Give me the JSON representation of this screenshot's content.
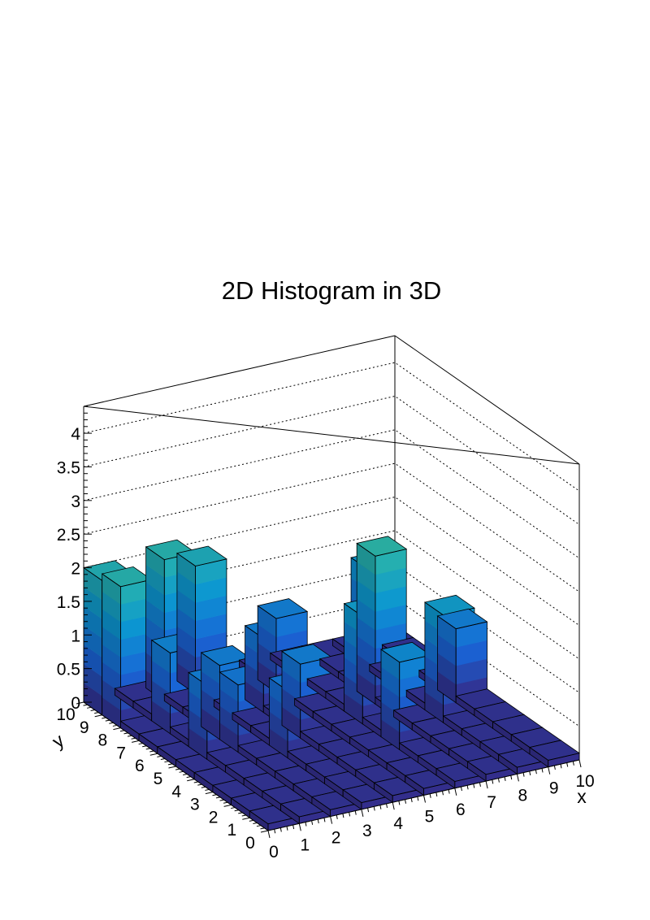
{
  "chart_data": {
    "type": "lego3d",
    "title": "2D Histogram in 3D",
    "xlabel": "x",
    "ylabel": "y",
    "zlabel": "",
    "xlim": [
      0,
      10
    ],
    "ylim": [
      0,
      10
    ],
    "zlim": [
      0,
      4.4
    ],
    "x_ticks": [
      "0",
      "1",
      "2",
      "3",
      "4",
      "5",
      "6",
      "7",
      "8",
      "9",
      "10"
    ],
    "y_ticks": [
      "0",
      "1",
      "2",
      "3",
      "4",
      "5",
      "6",
      "7",
      "8",
      "9",
      "10"
    ],
    "z_ticks": [
      {
        "value": 0,
        "label": "0"
      },
      {
        "value": 0.5,
        "label": "0.5"
      },
      {
        "value": 1,
        "label": "1"
      },
      {
        "value": 1.5,
        "label": "1.5"
      },
      {
        "value": 2,
        "label": "2"
      },
      {
        "value": 2.5,
        "label": "2.5"
      },
      {
        "value": 3,
        "label": "3"
      },
      {
        "value": 3.5,
        "label": "3.5"
      },
      {
        "value": 4,
        "label": "4"
      }
    ],
    "grid": true,
    "palette": [
      "#352a87",
      "#1964d6",
      "#0c97d1",
      "#2bb5a8",
      "#8dbe6b",
      "#e3b94c",
      "#f9fb0e"
    ],
    "values": [
      [
        0.1,
        0.1,
        0.1,
        0.1,
        0.1,
        0.1,
        0.1,
        0.1,
        0.1,
        0.1
      ],
      [
        0.1,
        0.1,
        0.1,
        0.1,
        0.1,
        0.1,
        0.1,
        0.1,
        0.1,
        0.1
      ],
      [
        0.1,
        0.1,
        0.1,
        0.1,
        0.1,
        0.1,
        0.1,
        0.1,
        0.1,
        0.1
      ],
      [
        0.1,
        0.1,
        0.1,
        0.1,
        0.1,
        0.1,
        1.3,
        0.1,
        0.1,
        0.1
      ],
      [
        0.1,
        0.1,
        0.1,
        1.0,
        0.1,
        0.1,
        0.1,
        0.1,
        1.6,
        0.1
      ],
      [
        0.1,
        1.1,
        1.0,
        0.1,
        1.1,
        0.1,
        1.6,
        0.1,
        0.1,
        1.1
      ],
      [
        0.1,
        0.1,
        1.1,
        0.1,
        0.1,
        0.1,
        0.1,
        2.2,
        0.1,
        0.1
      ],
      [
        0.1,
        1.2,
        0.1,
        0.1,
        1.1,
        0.1,
        0.1,
        0.1,
        0.1,
        0.1
      ],
      [
        2.1,
        0.1,
        0.1,
        0.1,
        0.1,
        1.1,
        0.1,
        0.1,
        1.5,
        0.1
      ],
      [
        2.0,
        0.1,
        2.1,
        1.9,
        0.1,
        0.1,
        0.1,
        0.1,
        0.1,
        0.1
      ]
    ]
  }
}
